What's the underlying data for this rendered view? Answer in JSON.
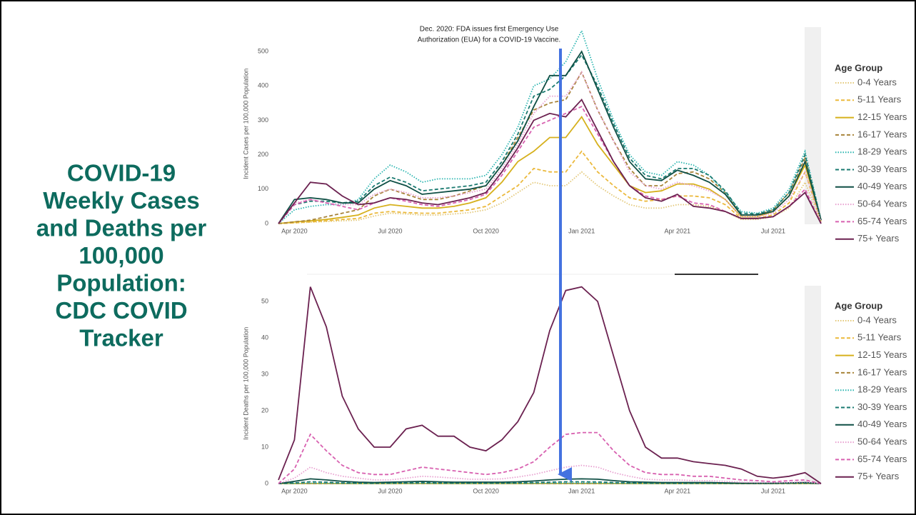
{
  "slide": {
    "title_lines": [
      "COVID-19",
      "Weekly Cases",
      "and Deaths per",
      "100,000",
      "Population:",
      "CDC COVID",
      "Tracker"
    ],
    "annotation_lines": [
      "Dec. 2020: FDA issues first Emergency Use",
      "Authorization (EUA) for a COVID-19 Vaccine."
    ]
  },
  "chart_data": [
    {
      "type": "line",
      "y_label": "Incident Cases per 100,000 Population",
      "legend_title": "Age Group",
      "categories": [
        null,
        "Apr 2020",
        null,
        null,
        null,
        null,
        null,
        "Jul 2020",
        null,
        null,
        null,
        null,
        null,
        "Oct 2020",
        null,
        null,
        null,
        null,
        null,
        "Jan 2021",
        null,
        null,
        null,
        null,
        null,
        "Apr 2021",
        null,
        null,
        null,
        null,
        null,
        "Jul 2021",
        null,
        null,
        null
      ],
      "ylim": [
        0,
        580
      ],
      "yticks": [
        0,
        100,
        200,
        300,
        400,
        500
      ],
      "series": [
        {
          "name": "0-4 Years",
          "color": "#e3c878",
          "dash": "dotted",
          "values": [
            0,
            2,
            4,
            6,
            8,
            10,
            22,
            30,
            28,
            25,
            25,
            28,
            32,
            40,
            60,
            90,
            120,
            110,
            110,
            150,
            110,
            80,
            55,
            45,
            45,
            55,
            55,
            50,
            35,
            12,
            12,
            20,
            45,
            120,
            5
          ]
        },
        {
          "name": "5-11 Years",
          "color": "#ebb93c",
          "dash": "dashed",
          "values": [
            0,
            2,
            5,
            8,
            12,
            15,
            30,
            35,
            32,
            30,
            30,
            35,
            40,
            50,
            80,
            110,
            160,
            150,
            150,
            210,
            150,
            110,
            75,
            65,
            70,
            80,
            80,
            75,
            55,
            15,
            15,
            25,
            60,
            150,
            5
          ]
        },
        {
          "name": "12-15 Years",
          "color": "#d6b01c",
          "dash": "solid",
          "values": [
            0,
            5,
            8,
            12,
            18,
            25,
            45,
            55,
            50,
            45,
            45,
            50,
            60,
            75,
            120,
            180,
            210,
            250,
            250,
            310,
            230,
            170,
            110,
            90,
            95,
            115,
            115,
            100,
            70,
            20,
            20,
            35,
            80,
            170,
            10
          ]
        },
        {
          "name": "16-17 Years",
          "color": "#a8843a",
          "dash": "dashed",
          "values": [
            0,
            5,
            10,
            20,
            30,
            40,
            80,
            100,
            85,
            70,
            70,
            80,
            95,
            110,
            170,
            250,
            330,
            350,
            360,
            440,
            330,
            240,
            160,
            110,
            110,
            145,
            150,
            130,
            90,
            25,
            25,
            40,
            90,
            190,
            10
          ]
        },
        {
          "name": "18-29 Years",
          "color": "#2ab5b0",
          "dash": "dotted",
          "values": [
            0,
            40,
            50,
            55,
            55,
            70,
            130,
            170,
            150,
            120,
            130,
            130,
            130,
            140,
            200,
            280,
            400,
            420,
            470,
            560,
            420,
            300,
            200,
            150,
            140,
            180,
            170,
            140,
            90,
            35,
            30,
            45,
            100,
            210,
            10
          ]
        },
        {
          "name": "30-39 Years",
          "color": "#1a7a70",
          "dash": "dashed",
          "values": [
            0,
            55,
            65,
            65,
            60,
            65,
            110,
            135,
            120,
            95,
            100,
            105,
            110,
            120,
            180,
            260,
            370,
            390,
            430,
            490,
            400,
            290,
            190,
            140,
            130,
            160,
            160,
            140,
            95,
            30,
            28,
            40,
            90,
            200,
            10
          ]
        },
        {
          "name": "40-49 Years",
          "color": "#0f4f45",
          "dash": "solid",
          "values": [
            0,
            70,
            75,
            70,
            60,
            60,
            100,
            125,
            110,
            85,
            90,
            95,
            100,
            110,
            170,
            240,
            340,
            430,
            430,
            500,
            390,
            280,
            180,
            130,
            125,
            155,
            140,
            120,
            85,
            25,
            25,
            35,
            80,
            180,
            10
          ]
        },
        {
          "name": "50-64 Years",
          "color": "#e8a0d0",
          "dash": "dotted",
          "values": [
            0,
            60,
            70,
            60,
            55,
            55,
            85,
            100,
            90,
            75,
            75,
            80,
            90,
            100,
            160,
            230,
            320,
            370,
            370,
            440,
            330,
            240,
            150,
            110,
            100,
            120,
            110,
            95,
            70,
            20,
            20,
            30,
            70,
            150,
            5
          ]
        },
        {
          "name": "65-74 Years",
          "color": "#d861b0",
          "dash": "dashed",
          "values": [
            0,
            55,
            70,
            60,
            50,
            40,
            60,
            75,
            65,
            55,
            50,
            60,
            70,
            85,
            140,
            210,
            280,
            300,
            320,
            340,
            260,
            180,
            110,
            80,
            70,
            80,
            60,
            55,
            35,
            15,
            15,
            20,
            50,
            100,
            0
          ]
        },
        {
          "name": "75+ Years",
          "color": "#6b2150",
          "dash": "solid",
          "values": [
            0,
            60,
            120,
            115,
            80,
            55,
            60,
            75,
            70,
            60,
            55,
            65,
            75,
            90,
            150,
            220,
            300,
            320,
            310,
            360,
            270,
            180,
            110,
            75,
            65,
            85,
            50,
            45,
            35,
            15,
            15,
            20,
            50,
            90,
            0
          ]
        }
      ]
    },
    {
      "type": "line",
      "y_label": "Incident Deaths per 100,000 Population",
      "legend_title": "Age Group",
      "categories": [
        null,
        "Apr 2020",
        null,
        null,
        null,
        null,
        null,
        "Jul 2020",
        null,
        null,
        null,
        null,
        null,
        "Oct 2020",
        null,
        null,
        null,
        null,
        null,
        "Jan 2021",
        null,
        null,
        null,
        null,
        null,
        "Apr 2021",
        null,
        null,
        null,
        null,
        null,
        "Jul 2021",
        null,
        null,
        null
      ],
      "ylim": [
        0,
        55
      ],
      "yticks": [
        0,
        10,
        20,
        30,
        40,
        50
      ],
      "series": [
        {
          "name": "0-4 Years",
          "color": "#e3c878",
          "dash": "dotted",
          "values": [
            0,
            0,
            0,
            0,
            0,
            0,
            0,
            0,
            0,
            0,
            0,
            0,
            0,
            0,
            0,
            0,
            0,
            0,
            0,
            0,
            0,
            0,
            0,
            0,
            0,
            0,
            0,
            0,
            0,
            0,
            0,
            0,
            0,
            0,
            0
          ]
        },
        {
          "name": "5-11 Years",
          "color": "#ebb93c",
          "dash": "dashed",
          "values": [
            0,
            0,
            0,
            0,
            0,
            0,
            0,
            0,
            0,
            0,
            0,
            0,
            0,
            0,
            0,
            0,
            0,
            0,
            0,
            0,
            0,
            0,
            0,
            0,
            0,
            0,
            0,
            0,
            0,
            0,
            0,
            0,
            0,
            0,
            0
          ]
        },
        {
          "name": "12-15 Years",
          "color": "#d6b01c",
          "dash": "solid",
          "values": [
            0,
            0,
            0.01,
            0.01,
            0,
            0,
            0,
            0,
            0.01,
            0.01,
            0,
            0,
            0,
            0,
            0,
            0,
            0.01,
            0.01,
            0.01,
            0.01,
            0.01,
            0.01,
            0,
            0,
            0,
            0,
            0,
            0,
            0,
            0,
            0,
            0,
            0.01,
            0.01,
            0
          ]
        },
        {
          "name": "16-17 Years",
          "color": "#a8843a",
          "dash": "dashed",
          "values": [
            0,
            0.01,
            0.02,
            0.02,
            0.01,
            0.01,
            0.01,
            0.01,
            0.02,
            0.02,
            0.01,
            0.01,
            0.01,
            0.01,
            0.01,
            0.02,
            0.02,
            0.02,
            0.03,
            0.03,
            0.03,
            0.02,
            0.01,
            0.01,
            0.01,
            0.01,
            0.01,
            0.01,
            0.01,
            0,
            0,
            0,
            0.01,
            0.02,
            0
          ]
        },
        {
          "name": "18-29 Years",
          "color": "#2ab5b0",
          "dash": "dotted",
          "values": [
            0,
            0.05,
            0.1,
            0.08,
            0.05,
            0.04,
            0.04,
            0.05,
            0.07,
            0.08,
            0.06,
            0.05,
            0.05,
            0.05,
            0.05,
            0.07,
            0.09,
            0.1,
            0.12,
            0.12,
            0.11,
            0.08,
            0.05,
            0.04,
            0.04,
            0.04,
            0.04,
            0.04,
            0.03,
            0.02,
            0.02,
            0.02,
            0.04,
            0.06,
            0
          ]
        },
        {
          "name": "30-39 Years",
          "color": "#1a7a70",
          "dash": "dashed",
          "values": [
            0,
            0.2,
            0.5,
            0.4,
            0.2,
            0.15,
            0.1,
            0.15,
            0.2,
            0.25,
            0.2,
            0.15,
            0.15,
            0.15,
            0.15,
            0.2,
            0.3,
            0.4,
            0.5,
            0.5,
            0.45,
            0.3,
            0.2,
            0.15,
            0.1,
            0.1,
            0.1,
            0.1,
            0.1,
            0.05,
            0.05,
            0.05,
            0.1,
            0.2,
            0
          ]
        },
        {
          "name": "40-49 Years",
          "color": "#0f4f45",
          "dash": "solid",
          "values": [
            0,
            0.6,
            1.3,
            1,
            0.6,
            0.4,
            0.3,
            0.4,
            0.5,
            0.6,
            0.5,
            0.4,
            0.4,
            0.4,
            0.4,
            0.5,
            0.7,
            1,
            1.2,
            1.3,
            1.2,
            0.8,
            0.5,
            0.4,
            0.3,
            0.3,
            0.3,
            0.3,
            0.2,
            0.1,
            0.1,
            0.1,
            0.2,
            0.3,
            0
          ]
        },
        {
          "name": "50-64 Years",
          "color": "#e8a0d0",
          "dash": "dotted",
          "values": [
            0,
            1.5,
            4.5,
            3,
            2,
            1.5,
            1,
            1,
            1.5,
            2,
            1.8,
            1.5,
            1.2,
            1.2,
            1.3,
            1.8,
            2.5,
            3.5,
            4.5,
            5,
            4.5,
            3,
            2,
            1.2,
            1,
            1,
            0.8,
            0.8,
            0.6,
            0.4,
            0.3,
            0.3,
            0.3,
            0.5,
            0
          ]
        },
        {
          "name": "65-74 Years",
          "color": "#d861b0",
          "dash": "dashed",
          "values": [
            0,
            4,
            13.5,
            9,
            5,
            3,
            2.5,
            2.5,
            3.5,
            4.5,
            4,
            3.5,
            3,
            2.5,
            3,
            4,
            6,
            10,
            13.5,
            14,
            14,
            9,
            5,
            3,
            2.5,
            2.5,
            2,
            2,
            1.5,
            1,
            0.8,
            0.5,
            0.8,
            1,
            0
          ]
        },
        {
          "name": "75+ Years",
          "color": "#6b2150",
          "dash": "solid",
          "values": [
            1,
            12,
            54,
            43,
            24,
            15,
            10,
            10,
            15,
            16,
            13,
            13,
            10,
            9,
            12,
            17,
            25,
            42,
            53,
            54,
            50,
            35,
            20,
            10,
            7,
            7,
            6,
            5.5,
            5,
            4,
            2,
            1.5,
            2,
            3,
            0
          ]
        }
      ]
    }
  ]
}
